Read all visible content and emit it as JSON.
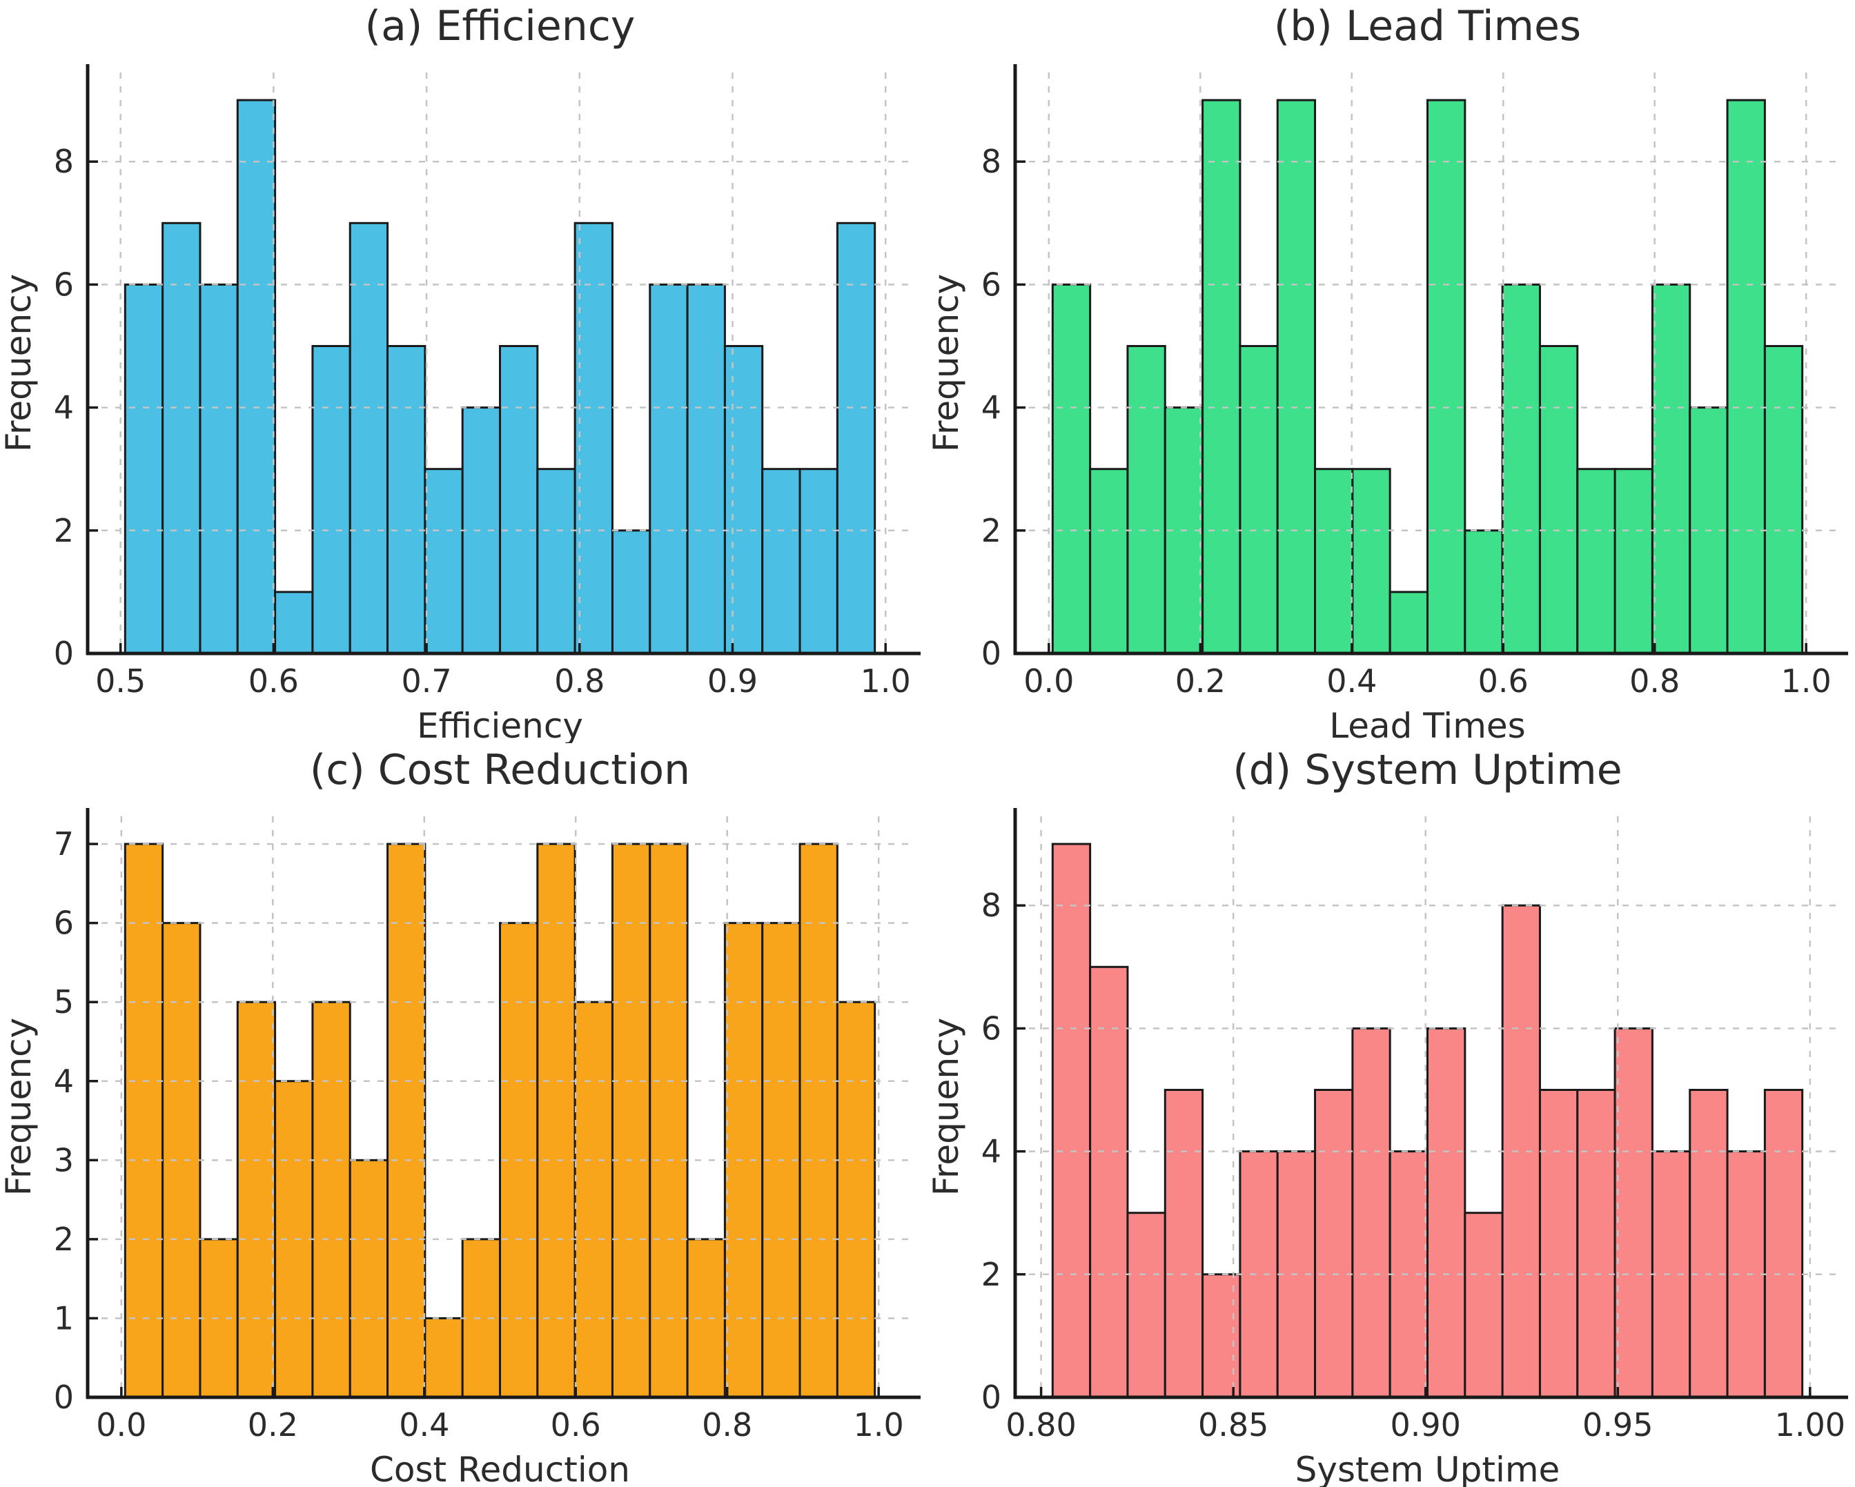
{
  "figure": {
    "background": "#ffffff",
    "grid_color": "#c4c4c4",
    "edge_color": "#1a1a1a",
    "text_color": "#2b2b2b",
    "grid_on": true,
    "layout": "2x2"
  },
  "chart_data": [
    {
      "id": "a",
      "type": "bar",
      "title": "(a) Efficiency",
      "xlabel": "Efficiency",
      "ylabel": "Frequency",
      "bar_color": "#4CC0E4",
      "bin_start": 0.503,
      "bin_end": 0.993,
      "values": [
        6,
        7,
        6,
        9,
        1,
        5,
        7,
        5,
        3,
        4,
        5,
        3,
        7,
        2,
        6,
        6,
        5,
        3,
        3,
        7
      ],
      "xlim": [
        0.4785,
        1.0175
      ],
      "ylim": [
        0,
        9.45
      ],
      "xticks": [
        {
          "v": 0.5,
          "t": "0.5"
        },
        {
          "v": 0.6,
          "t": "0.6"
        },
        {
          "v": 0.7,
          "t": "0.7"
        },
        {
          "v": 0.8,
          "t": "0.8"
        },
        {
          "v": 0.9,
          "t": "0.9"
        },
        {
          "v": 1.0,
          "t": "1.0"
        }
      ],
      "yticks": [
        {
          "v": 0,
          "t": "0"
        },
        {
          "v": 2,
          "t": "2"
        },
        {
          "v": 4,
          "t": "4"
        },
        {
          "v": 6,
          "t": "6"
        },
        {
          "v": 8,
          "t": "8"
        }
      ]
    },
    {
      "id": "b",
      "type": "bar",
      "title": "(b) Lead Times",
      "xlabel": "Lead Times",
      "ylabel": "Frequency",
      "bar_color": "#3EE08C",
      "bin_start": 0.005,
      "bin_end": 0.995,
      "values": [
        6,
        3,
        5,
        4,
        9,
        5,
        9,
        3,
        3,
        1,
        9,
        2,
        6,
        5,
        3,
        3,
        6,
        4,
        9,
        5
      ],
      "xlim": [
        -0.0445,
        1.0445
      ],
      "ylim": [
        0,
        9.45
      ],
      "xticks": [
        {
          "v": 0.0,
          "t": "0.0"
        },
        {
          "v": 0.2,
          "t": "0.2"
        },
        {
          "v": 0.4,
          "t": "0.4"
        },
        {
          "v": 0.6,
          "t": "0.6"
        },
        {
          "v": 0.8,
          "t": "0.8"
        },
        {
          "v": 1.0,
          "t": "1.0"
        }
      ],
      "yticks": [
        {
          "v": 0,
          "t": "0"
        },
        {
          "v": 2,
          "t": "2"
        },
        {
          "v": 4,
          "t": "4"
        },
        {
          "v": 6,
          "t": "6"
        },
        {
          "v": 8,
          "t": "8"
        }
      ]
    },
    {
      "id": "c",
      "type": "bar",
      "title": "(c) Cost Reduction",
      "xlabel": "Cost Reduction",
      "ylabel": "Frequency",
      "bar_color": "#F9A51B",
      "bin_start": 0.005,
      "bin_end": 0.995,
      "values": [
        7,
        6,
        2,
        5,
        4,
        5,
        3,
        7,
        1,
        2,
        6,
        7,
        5,
        7,
        7,
        2,
        6,
        6,
        7,
        5
      ],
      "xlim": [
        -0.0445,
        1.0445
      ],
      "ylim": [
        0,
        7.35
      ],
      "xticks": [
        {
          "v": 0.0,
          "t": "0.0"
        },
        {
          "v": 0.2,
          "t": "0.2"
        },
        {
          "v": 0.4,
          "t": "0.4"
        },
        {
          "v": 0.6,
          "t": "0.6"
        },
        {
          "v": 0.8,
          "t": "0.8"
        },
        {
          "v": 1.0,
          "t": "1.0"
        }
      ],
      "yticks": [
        {
          "v": 0,
          "t": "0"
        },
        {
          "v": 1,
          "t": "1"
        },
        {
          "v": 2,
          "t": "2"
        },
        {
          "v": 3,
          "t": "3"
        },
        {
          "v": 4,
          "t": "4"
        },
        {
          "v": 5,
          "t": "5"
        },
        {
          "v": 6,
          "t": "6"
        },
        {
          "v": 7,
          "t": "7"
        }
      ]
    },
    {
      "id": "d",
      "type": "bar",
      "title": "(d) System Uptime",
      "xlabel": "System Uptime",
      "ylabel": "Frequency",
      "bar_color": "#F98787",
      "bin_start": 0.803,
      "bin_end": 0.998,
      "values": [
        9,
        7,
        3,
        5,
        2,
        4,
        4,
        5,
        6,
        4,
        6,
        3,
        8,
        5,
        5,
        6,
        4,
        5,
        4,
        5
      ],
      "xlim": [
        0.79325,
        1.00775
      ],
      "ylim": [
        0,
        9.45
      ],
      "xticks": [
        {
          "v": 0.8,
          "t": "0.80"
        },
        {
          "v": 0.85,
          "t": "0.85"
        },
        {
          "v": 0.9,
          "t": "0.90"
        },
        {
          "v": 0.95,
          "t": "0.95"
        },
        {
          "v": 1.0,
          "t": "1.00"
        }
      ],
      "yticks": [
        {
          "v": 0,
          "t": "0"
        },
        {
          "v": 2,
          "t": "2"
        },
        {
          "v": 4,
          "t": "4"
        },
        {
          "v": 6,
          "t": "6"
        },
        {
          "v": 8,
          "t": "8"
        }
      ]
    }
  ]
}
